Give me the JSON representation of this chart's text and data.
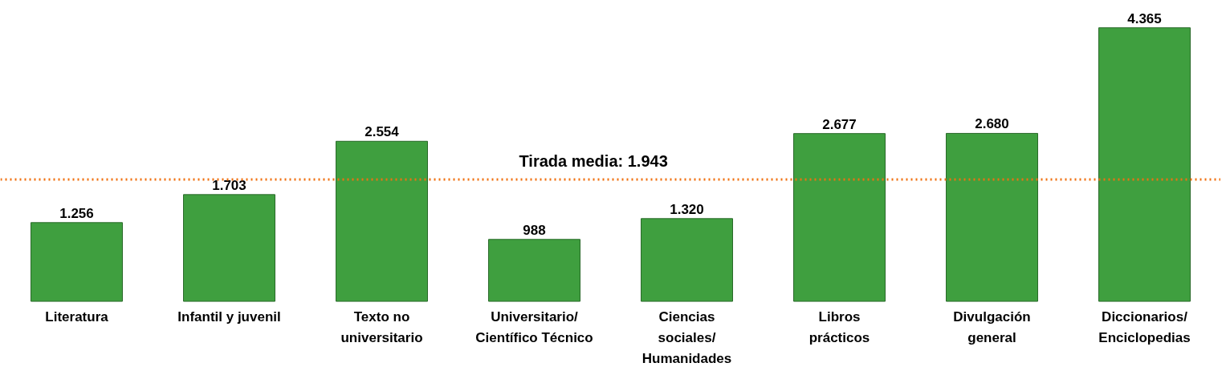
{
  "chart_data": {
    "type": "bar",
    "categories": [
      "Literatura",
      "Infantil y juvenil",
      "Texto no\nuniversitario",
      "Universitario/\nCientífico Técnico",
      "Ciencias\nsociales/\nHumanidades",
      "Libros\nprácticos",
      "Divulgación\ngeneral",
      "Diccionarios/\nEnciclopedias"
    ],
    "values": [
      1256,
      1703,
      2554,
      988,
      1320,
      2677,
      2680,
      4365
    ],
    "value_labels": [
      "1.256",
      "1.703",
      "2.554",
      "988",
      "1.320",
      "2.677",
      "2.680",
      "4.365"
    ],
    "color": "#3f9f3f",
    "ref_lines": [
      {
        "axis": "y",
        "value": 1943,
        "label": "Tirada media: 1.943",
        "color": "#f07010",
        "line_style": "dotted"
      }
    ],
    "grid": false
  }
}
